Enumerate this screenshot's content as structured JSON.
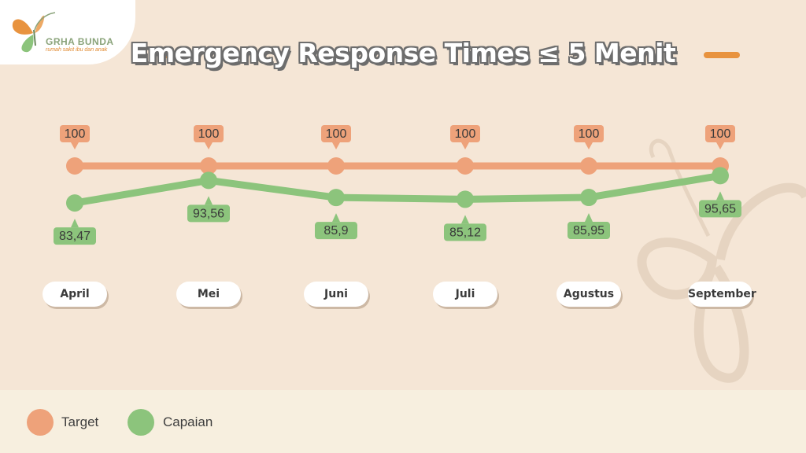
{
  "logo": {
    "name": "GRHA BUNDA",
    "tagline": "rumah sakit ibu dan anak"
  },
  "colors": {
    "target": "#eea27a",
    "capaian": "#8cc47c",
    "target_label_bg": "#eea27a",
    "capaian_label_bg": "#8cc47c",
    "accent": "#e8933f"
  },
  "chart_data": {
    "type": "line",
    "title": "Emergency Response Times ≤ 5 Menit",
    "categories": [
      "April",
      "Mei",
      "Juni",
      "Juli",
      "Agustus",
      "September"
    ],
    "series": [
      {
        "name": "Target",
        "values": [
          100,
          100,
          100,
          100,
          100,
          100
        ],
        "labels": [
          "100",
          "100",
          "100",
          "100",
          "100",
          "100"
        ]
      },
      {
        "name": "Capaian",
        "values": [
          83.47,
          93.56,
          85.9,
          85.12,
          85.95,
          95.65
        ],
        "labels": [
          "83,47",
          "93,56",
          "85,9",
          "85,12",
          "85,95",
          "95,65"
        ]
      }
    ],
    "legend_position": "bottom-left",
    "grid": false
  },
  "legend": {
    "target": "Target",
    "capaian": "Capaian"
  }
}
